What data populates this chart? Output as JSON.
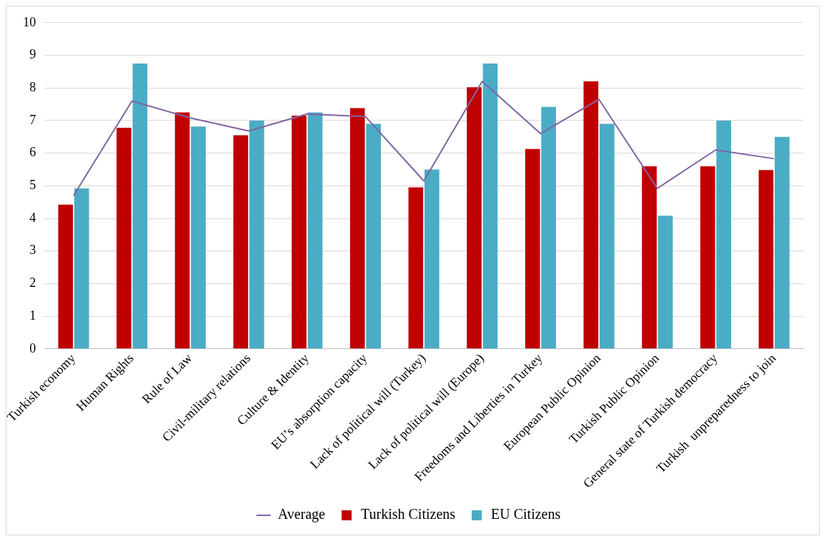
{
  "chart_data": {
    "type": "bar",
    "categories": [
      "Turkish economy",
      "Human Rights",
      "Rule of Law",
      "Civil-military relations",
      "Culture & Identity",
      "EU’s absorption capacity",
      "Lack of political will (Turkey)",
      "Lack of political will (Europe)",
      "Freedoms and Liberties in Turkey",
      "European Public Opinion",
      "Turkish Public Opinion",
      "General state of Turkish democracy",
      "Turkish  unpreparedness to join"
    ],
    "series": [
      {
        "name": "Turkish Citizens",
        "color": "#c00000",
        "values": [
          4.42,
          6.78,
          7.25,
          6.55,
          7.15,
          7.38,
          4.95,
          8.02,
          6.13,
          8.2,
          5.6,
          5.6,
          5.48
        ]
      },
      {
        "name": "EU Citizens",
        "color": "#4bacc6",
        "values": [
          4.92,
          8.75,
          6.82,
          7.0,
          7.25,
          6.9,
          5.5,
          8.75,
          7.42,
          6.9,
          4.08,
          7.0,
          6.5
        ]
      },
      {
        "name": "Average",
        "type": "line",
        "color": "#8064a2",
        "values": [
          4.7,
          7.6,
          7.08,
          6.68,
          7.2,
          7.12,
          5.15,
          8.2,
          6.6,
          7.65,
          4.92,
          6.1,
          5.83
        ]
      }
    ],
    "ylim": [
      0,
      10
    ],
    "yticks": [
      0,
      1,
      2,
      3,
      4,
      5,
      6,
      7,
      8,
      9,
      10
    ],
    "grid": "y",
    "legend": "bottom",
    "marker": "none",
    "line_style": "solid"
  }
}
